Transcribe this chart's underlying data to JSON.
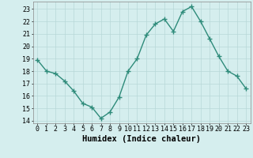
{
  "x": [
    0,
    1,
    2,
    3,
    4,
    5,
    6,
    7,
    8,
    9,
    10,
    11,
    12,
    13,
    14,
    15,
    16,
    17,
    18,
    19,
    20,
    21,
    22,
    23
  ],
  "y": [
    18.9,
    18.0,
    17.8,
    17.2,
    16.4,
    15.4,
    15.1,
    14.2,
    14.7,
    15.9,
    18.0,
    19.0,
    20.9,
    21.8,
    22.2,
    21.2,
    22.8,
    23.2,
    22.0,
    20.6,
    19.2,
    18.0,
    17.6,
    16.6
  ],
  "line_color": "#2e8b7a",
  "marker": "+",
  "marker_size": 4,
  "marker_edge_width": 1.0,
  "background_color": "#d5eeee",
  "grid_color": "#b8d8d8",
  "xlabel": "Humidex (Indice chaleur)",
  "xlabel_fontsize": 7.5,
  "ylabel_ticks": [
    14,
    15,
    16,
    17,
    18,
    19,
    20,
    21,
    22,
    23
  ],
  "xlim": [
    -0.5,
    23.5
  ],
  "ylim": [
    13.8,
    23.6
  ],
  "tick_fontsize": 6.0,
  "linewidth": 1.0
}
